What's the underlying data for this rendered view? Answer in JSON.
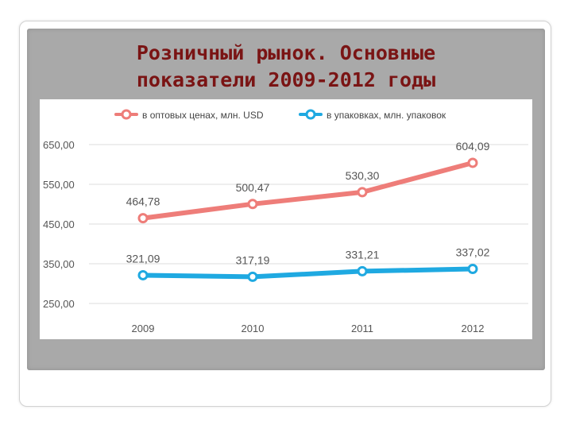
{
  "slide": {
    "title_line1": "Розничный рынок. Основные",
    "title_line2": "показатели 2009-2012 годы"
  },
  "colors": {
    "title": "#7a1414",
    "series_wholesale": "#ee7d79",
    "series_packages": "#1fa9e1",
    "panel": "#a9a9a9"
  },
  "chart_data": {
    "type": "line",
    "categories": [
      "2009",
      "2010",
      "2011",
      "2012"
    ],
    "series": [
      {
        "name": "в оптовых ценах, млн. USD",
        "values": [
          464.78,
          500.47,
          530.3,
          604.09
        ],
        "labels": [
          "464,78",
          "500,47",
          "530,30",
          "604,09"
        ],
        "color": "#ee7d79"
      },
      {
        "name": "в упаковках, млн. упаковок",
        "values": [
          321.09,
          317.19,
          331.21,
          337.02
        ],
        "labels": [
          "321,09",
          "317,19",
          "331,21",
          "337,02"
        ],
        "color": "#1fa9e1"
      }
    ],
    "y_ticks": [
      250,
      350,
      450,
      550,
      650
    ],
    "y_tick_labels": [
      "250,00",
      "350,00",
      "450,00",
      "550,00",
      "650,00"
    ],
    "ylim": [
      250,
      650
    ],
    "legend": "top",
    "grid": true
  }
}
